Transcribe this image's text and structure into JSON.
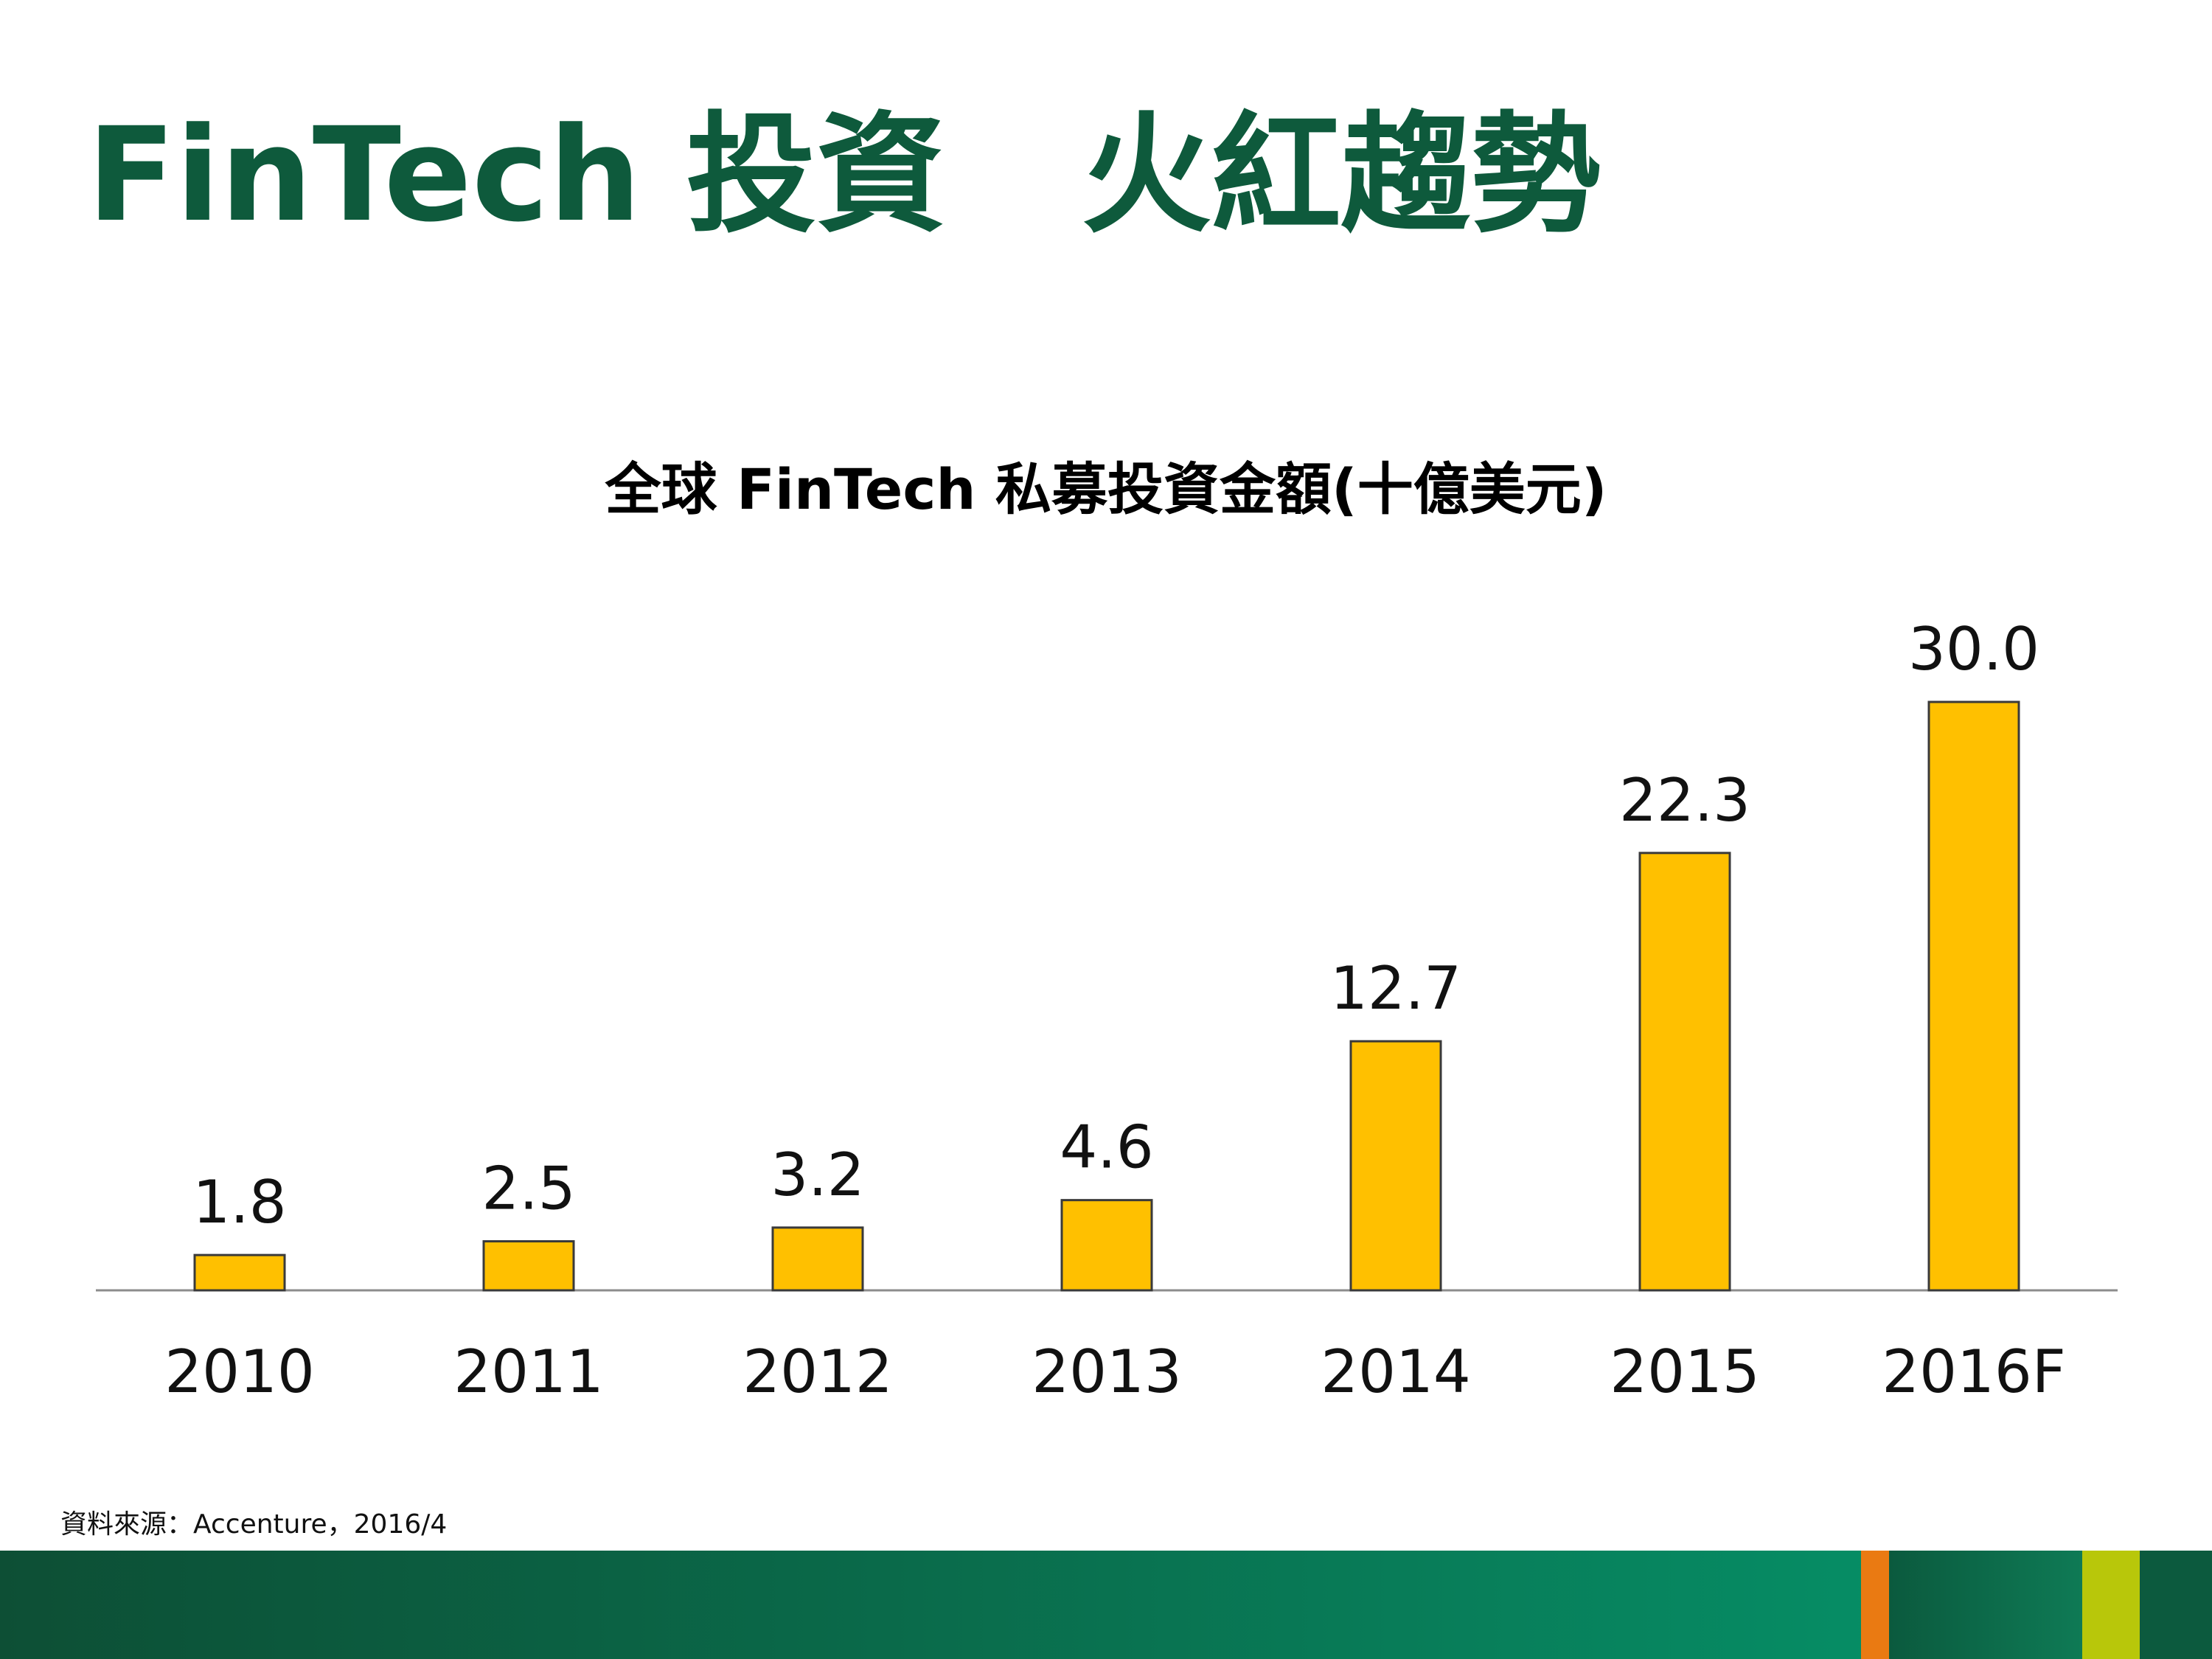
{
  "slide": {
    "title": "FinTech 投資   火紅趨勢",
    "source": "資料來源：Accenture，2016/4"
  },
  "colors": {
    "title": "#0e5a3c",
    "bar": "#ffc000",
    "bar_stroke": "#3a3a3a",
    "baseline": "#8c8c8c"
  },
  "chart_data": {
    "type": "bar",
    "title": "全球 FinTech 私募投資金額(十億美元)",
    "categories": [
      "2010",
      "2011",
      "2012",
      "2013",
      "2014",
      "2015",
      "2016F"
    ],
    "values": [
      1.8,
      2.5,
      3.2,
      4.6,
      12.7,
      22.3,
      30.0
    ],
    "value_labels": [
      "1.8",
      "2.5",
      "3.2",
      "4.6",
      "12.7",
      "22.3",
      "30.0"
    ],
    "xlabel": "",
    "ylabel": "",
    "ylim": [
      0,
      30
    ],
    "grid": false,
    "legend": "none"
  }
}
